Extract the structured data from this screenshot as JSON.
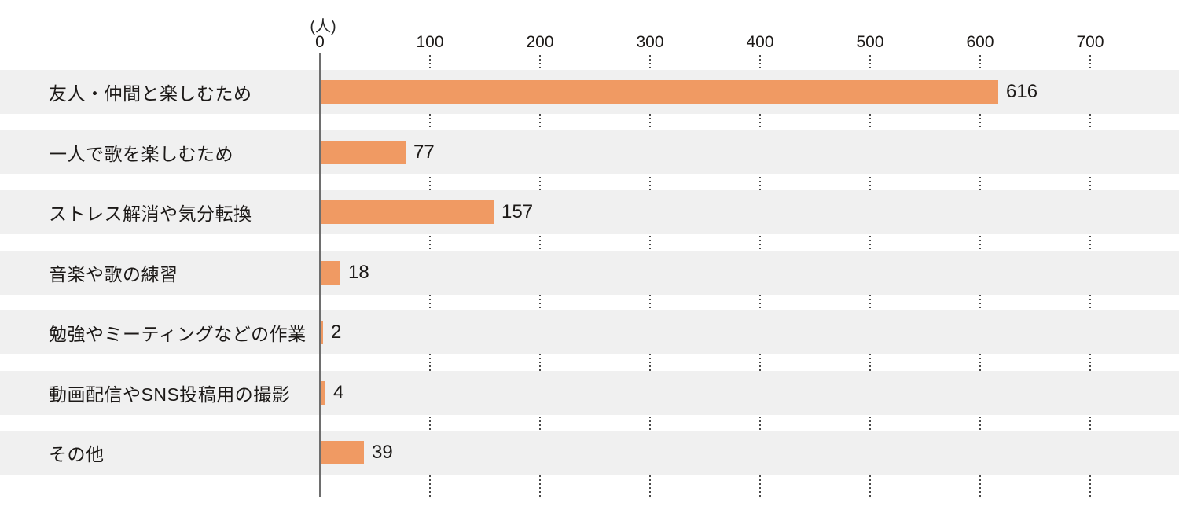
{
  "chart_data": {
    "type": "bar",
    "orientation": "horizontal",
    "title": "",
    "unit_label": "(人)",
    "categories": [
      "友人・仲間と楽しむため",
      "一人で歌を楽しむため",
      "ストレス解消や気分転換",
      "音楽や歌の練習",
      "勉強やミーティングなどの作業",
      "動画配信やSNS投稿用の撮影",
      "その他"
    ],
    "values": [
      616,
      77,
      157,
      18,
      2,
      4,
      39
    ],
    "xlabel": "",
    "ylabel": "",
    "xlim": [
      0,
      700
    ],
    "x_ticks": [
      0,
      100,
      200,
      300,
      400,
      500,
      600,
      700
    ],
    "grid": "dotted-vertical-in-row-gaps",
    "legend": "none",
    "colors": {
      "bar": "#F09A63",
      "row_band": "#F0F0F0",
      "axis_line": "#6E6E6E",
      "grid_dot": "#4A4A4A",
      "text": "#1C1917",
      "background": "#FFFFFF"
    }
  }
}
